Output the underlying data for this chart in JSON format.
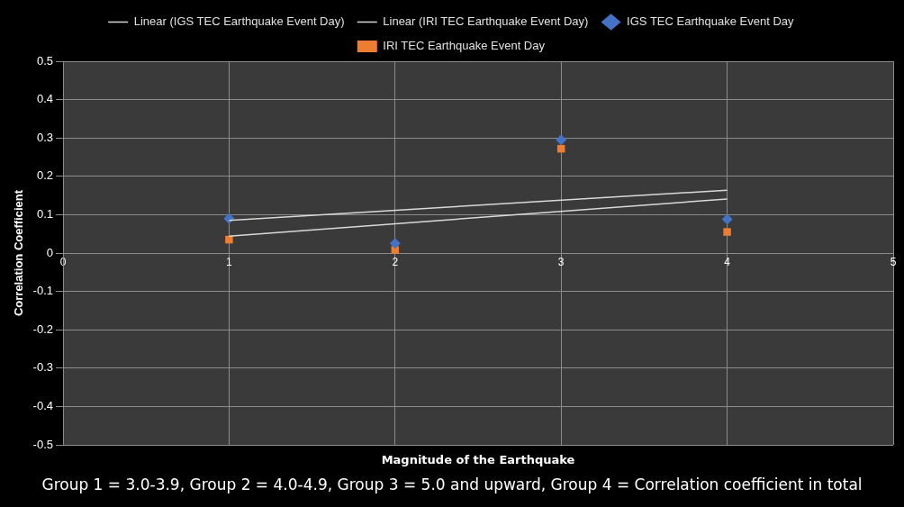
{
  "chart_data": {
    "type": "scatter",
    "xlabel": "Magnitude of the Earthquake",
    "ylabel": "Correlation Coefficient",
    "xlim": [
      0,
      5
    ],
    "xticks": [
      0,
      1,
      2,
      3,
      4,
      5
    ],
    "ylim": [
      -0.5,
      0.5
    ],
    "yticks": [
      -0.5,
      -0.4,
      -0.3,
      -0.2,
      -0.1,
      0,
      0.1,
      0.2,
      0.3,
      0.4,
      0.5
    ],
    "grid": true,
    "legend": "top",
    "series": [
      {
        "name": "IGS TEC Earthquake Event Day",
        "type": "scatter",
        "marker": "diamond",
        "color": "#4472c4",
        "x": [
          1,
          2,
          3,
          4
        ],
        "values": [
          0.09,
          0.025,
          0.295,
          0.088
        ]
      },
      {
        "name": "IRI TEC Earthquake Event Day",
        "type": "scatter",
        "marker": "square",
        "color": "#ed7d31",
        "x": [
          1,
          2,
          3,
          4
        ],
        "values": [
          0.035,
          0.008,
          0.272,
          0.055
        ]
      },
      {
        "name": "Linear (IGS TEC Earthquake Event Day)",
        "type": "line",
        "marker": "none",
        "color": "#d9d9d9",
        "x": [
          1,
          4
        ],
        "values": [
          0.085,
          0.164
        ]
      },
      {
        "name": "Linear (IRI TEC Earthquake Event Day)",
        "type": "line",
        "marker": "none",
        "color": "#d9d9d9",
        "x": [
          1,
          4
        ],
        "values": [
          0.044,
          0.141
        ]
      }
    ],
    "annotations": [
      "Group 1 = 3.0-3.9, Group 2 = 4.0-4.9, Group 3 = 5.0 and upward, Group 4 = Correlation coefficient in total"
    ]
  }
}
